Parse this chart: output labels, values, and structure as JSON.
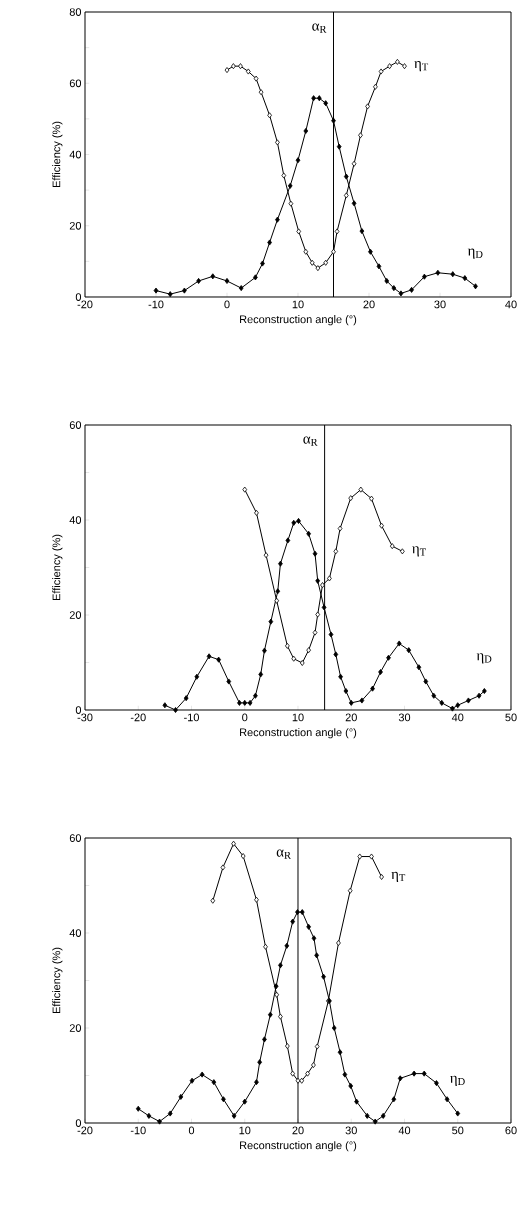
{
  "chart_data": [
    {
      "type": "line",
      "xlabel": "Reconstruction angle (°)",
      "ylabel": "Efficiency (%)",
      "xlim": [
        -20,
        40
      ],
      "xticks": [
        -20,
        -10,
        0,
        10,
        20,
        30,
        40
      ],
      "ylim": [
        0,
        80
      ],
      "yticks": [
        0,
        {
          "value": 10,
          "label": null
        },
        20,
        {
          "value": 30,
          "label": null
        },
        40,
        {
          "value": 50,
          "label": null
        },
        60,
        {
          "value": 70,
          "label": null
        },
        80
      ],
      "marker": "diamond",
      "line_style": "solid",
      "grid": false,
      "legend": false,
      "ref_lines": [
        {
          "axis": "x",
          "value": 15,
          "label": "α$_{R}$",
          "color": "#000000"
        }
      ],
      "series": [
        {
          "name": "η$_{T}$",
          "color": "#000000",
          "x": [
            0,
            0.9,
            1.9,
            3,
            4.1,
            4.8,
            6,
            7.1,
            8,
            9,
            10.1,
            11.1,
            12,
            12.8,
            13.9,
            15,
            15.5,
            16.8,
            17.9,
            18.8,
            19.8,
            20.9,
            21.7,
            22.9,
            24,
            25
          ],
          "values": [
            63.7,
            64.8,
            64.8,
            63.3,
            61.3,
            57.5,
            51,
            43.4,
            34.1,
            26.2,
            18.4,
            12.7,
            9.6,
            8.1,
            9.6,
            12.7,
            18.4,
            28.5,
            37.4,
            45.4,
            53.5,
            59,
            63.3,
            64.8,
            66,
            64.8
          ]
        },
        {
          "name": "η$_{D}$",
          "color": "#000000",
          "x": [
            -10,
            -8,
            -6,
            -4,
            -2,
            0,
            2,
            4,
            5,
            6,
            7.1,
            8.9,
            10,
            11.1,
            12.2,
            13,
            13.9,
            15,
            15.8,
            16.8,
            17.9,
            19,
            20.2,
            21.4,
            22.5,
            23.5,
            24.5,
            26,
            27.8,
            29.7,
            31.8,
            33.5,
            35
          ],
          "values": [
            1.8,
            0.8,
            1.8,
            4.5,
            5.8,
            4.5,
            2.5,
            5.5,
            9.4,
            15.3,
            21.7,
            31.2,
            38.4,
            46.6,
            55.8,
            55.8,
            54.4,
            49.5,
            42.2,
            33.8,
            26.3,
            18.5,
            12.7,
            8.6,
            4.5,
            2.5,
            1,
            2,
            5.7,
            6.8,
            6.4,
            5.3,
            3
          ]
        }
      ]
    },
    {
      "type": "line",
      "xlabel": "Reconstruction angle (°)",
      "ylabel": "Efficiency (%)",
      "xlim": [
        -30,
        50
      ],
      "xticks": [
        -30,
        -20,
        -10,
        0,
        10,
        20,
        30,
        40,
        50
      ],
      "ylim": [
        0,
        60
      ],
      "yticks": [
        0,
        {
          "value": 10,
          "label": null
        },
        20,
        {
          "value": 30,
          "label": null
        },
        40,
        {
          "value": 50,
          "label": null
        },
        60
      ],
      "marker": "diamond",
      "line_style": "solid",
      "grid": false,
      "legend": false,
      "ref_lines": [
        {
          "axis": "x",
          "value": 15,
          "label": "α$_{R}$",
          "color": "#000000"
        }
      ],
      "series": [
        {
          "name": "η$_{T}$",
          "color": "#000000",
          "x": [
            0,
            2.2,
            4,
            6,
            8,
            9.2,
            10.8,
            12,
            13.2,
            13.7,
            14.6,
            15.9,
            17.1,
            17.9,
            19.9,
            21.8,
            23.8,
            25.7,
            27.7,
            29.6
          ],
          "values": [
            46.4,
            41.5,
            32.6,
            23,
            13.5,
            10.8,
            9.9,
            12.6,
            16.3,
            20.1,
            26.3,
            27.7,
            33.4,
            38.2,
            44.6,
            46.4,
            44.5,
            38.8,
            34.5,
            33.4
          ]
        },
        {
          "name": "η$_{D}$",
          "color": "#000000",
          "x": [
            -15,
            -13,
            -11,
            -9,
            -6.7,
            -4.9,
            -3,
            -1,
            0,
            1,
            2,
            3,
            3.7,
            4.9,
            6.2,
            6.7,
            8.1,
            9.2,
            10.1,
            12,
            13.2,
            13.7,
            14.9,
            16.2,
            17.1,
            18,
            19,
            20,
            22,
            24,
            25.5,
            27,
            29,
            30.8,
            32.7,
            34,
            35.5,
            37,
            39,
            40,
            42,
            44,
            45
          ],
          "values": [
            1,
            0,
            2.5,
            7,
            11.3,
            10.6,
            6,
            1.5,
            1.5,
            1.5,
            3,
            7.5,
            12.5,
            18.6,
            25,
            30.8,
            35.7,
            39.4,
            39.8,
            37.1,
            32.9,
            27.2,
            21.6,
            15.9,
            11.7,
            7,
            4,
            1.5,
            2,
            4.5,
            8,
            11,
            14,
            12.6,
            9,
            6,
            3,
            1.5,
            0.3,
            1,
            2,
            3,
            4
          ]
        }
      ]
    },
    {
      "type": "line",
      "xlabel": "Reconstruction angle (°)",
      "ylabel": "Efficiency (%)",
      "xlim": [
        -20,
        60
      ],
      "xticks": [
        -20,
        -10,
        0,
        10,
        20,
        30,
        40,
        50,
        60
      ],
      "ylim": [
        0,
        60
      ],
      "yticks": [
        0,
        {
          "value": 10,
          "label": null
        },
        20,
        {
          "value": 30,
          "label": null
        },
        40,
        {
          "value": 50,
          "label": null
        },
        60
      ],
      "marker": "diamond",
      "line_style": "solid",
      "grid": false,
      "legend": false,
      "ref_lines": [
        {
          "axis": "x",
          "value": 20,
          "label": "α$_{R}$",
          "color": "#000000"
        }
      ],
      "series": [
        {
          "name": "η$_{T}$",
          "color": "#000000",
          "x": [
            4,
            5.9,
            7.9,
            9.7,
            12.2,
            13.9,
            16,
            16.7,
            18,
            19,
            20,
            20.7,
            21.8,
            22.9,
            23.6,
            25.7,
            27.6,
            29.8,
            31.6,
            33.8,
            35.7
          ],
          "values": [
            46.8,
            53.8,
            58.8,
            56.2,
            47,
            37.1,
            27,
            22.4,
            16.2,
            10.4,
            8.9,
            8.9,
            10.4,
            12.2,
            16.1,
            25.7,
            37.9,
            48.9,
            56.1,
            56.1,
            51.8
          ]
        },
        {
          "name": "η$_{D}$",
          "color": "#000000",
          "x": [
            -10,
            -8,
            -6,
            -4,
            -2,
            0.1,
            2,
            4.2,
            6,
            8,
            10,
            12.2,
            12.8,
            13.7,
            14.8,
            15.9,
            16.7,
            17.9,
            19,
            19.9,
            20.8,
            22,
            23,
            23.5,
            24.8,
            25.9,
            26.8,
            27.9,
            28.8,
            29.9,
            31,
            33,
            34.5,
            36,
            38,
            39.2,
            41.8,
            43.7,
            46,
            48,
            50
          ],
          "values": [
            3,
            1.5,
            0.3,
            2,
            5.5,
            8.9,
            10.2,
            8.6,
            5,
            1.5,
            4.5,
            8.6,
            12.8,
            17.6,
            22.8,
            28.8,
            33.2,
            37.3,
            42.4,
            44.4,
            44.4,
            41.3,
            38.9,
            35.3,
            30.8,
            25.7,
            20,
            14.9,
            10.2,
            7.8,
            4.5,
            1.5,
            0.3,
            1.5,
            5,
            9.4,
            10.4,
            10.4,
            8.4,
            5,
            2
          ]
        }
      ]
    }
  ]
}
